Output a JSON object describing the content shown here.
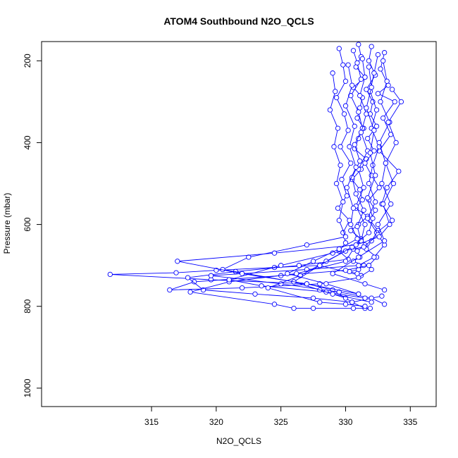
{
  "chart_data": {
    "type": "line",
    "title": "ATOM4 Southbound N2O_QCLS",
    "xlabel": "N2O_QCLS",
    "ylabel": "Pressure (mbar)",
    "xlim": [
      306.5,
      337
    ],
    "ylim": [
      1045,
      153
    ],
    "y_axis_inverted": true,
    "x_ticks": [
      315,
      320,
      325,
      330,
      335
    ],
    "y_ticks": [
      200,
      400,
      600,
      800,
      1000
    ],
    "grid": false,
    "legend": "none",
    "series_color": "#0000ff",
    "marker": "open-circle",
    "series": [
      {
        "name": "",
        "x": [
          331.0,
          331.2,
          330.8,
          331.5,
          330.6,
          331.3,
          331.1,
          330.9,
          331.4,
          331.0,
          330.7,
          331.6,
          331.2,
          330.5,
          331.1,
          331.3,
          330.8,
          331.7,
          331.0,
          330.4,
          331.2,
          331.5,
          330.9,
          331.1,
          330.6,
          331.4,
          331.0,
          330.3,
          330.9,
          331.2,
          328.0,
          324.5,
          320.0,
          316.9,
          311.8,
          319.6,
          327.0,
          329.0,
          330.5,
          331.5
        ],
        "y": [
          160,
          190,
          215,
          240,
          265,
          290,
          315,
          340,
          365,
          390,
          415,
          440,
          465,
          490,
          515,
          540,
          560,
          580,
          600,
          615,
          635,
          650,
          665,
          680,
          690,
          700,
          710,
          715,
          720,
          725,
          700,
          705,
          712,
          718,
          722,
          735,
          745,
          760,
          790,
          805
        ]
      },
      {
        "name": "",
        "x": [
          332.0,
          331.8,
          332.3,
          331.6,
          332.1,
          331.9,
          332.4,
          331.7,
          332.2,
          331.5,
          332.0,
          332.6,
          331.8,
          332.3,
          331.9,
          332.5,
          332.0,
          331.6,
          332.4,
          331.8,
          330.0,
          325.0,
          318.3,
          316.4,
          322.0,
          328.0,
          331.0,
          332.0
        ],
        "y": [
          165,
          200,
          235,
          270,
          300,
          330,
          360,
          390,
          420,
          450,
          480,
          510,
          540,
          565,
          590,
          615,
          640,
          660,
          680,
          700,
          712,
          725,
          740,
          760,
          755,
          745,
          730,
          710
        ]
      },
      {
        "name": "",
        "x": [
          329.5,
          329.8,
          330.0,
          329.3,
          329.9,
          330.2,
          329.6,
          330.4,
          329.7,
          330.1,
          329.4,
          330.3,
          329.8,
          330.0,
          329.5,
          330.2,
          326.4,
          321.5,
          317.8,
          319.0,
          323.0,
          327.5,
          330.5,
          332.8
        ],
        "y": [
          170,
          210,
          250,
          290,
          330,
          370,
          410,
          450,
          490,
          530,
          560,
          590,
          620,
          645,
          665,
          685,
          700,
          715,
          730,
          760,
          770,
          780,
          790,
          775
        ]
      },
      {
        "name": "",
        "x": [
          333.0,
          332.7,
          333.3,
          332.5,
          333.8,
          332.9,
          333.5,
          332.6,
          334.1,
          333.2,
          332.8,
          333.6,
          332.4,
          333.0,
          332.2,
          331.0,
          327.0,
          319.6,
          325.0,
          329.5,
          332.0,
          333.0
        ],
        "y": [
          180,
          220,
          260,
          280,
          300,
          340,
          380,
          420,
          470,
          510,
          550,
          590,
          620,
          650,
          680,
          700,
          710,
          725,
          745,
          765,
          780,
          795
        ]
      },
      {
        "name": "",
        "x": [
          330.6,
          330.9,
          331.2,
          330.4,
          331.0,
          331.3,
          330.7,
          331.1,
          330.5,
          330.8,
          331.4,
          330.9,
          331.2,
          330.6,
          330.0,
          326.2,
          321.0,
          318.0,
          324.5,
          326.0,
          327.5,
          330.6,
          331.9
        ],
        "y": [
          175,
          205,
          245,
          285,
          325,
          365,
          405,
          445,
          485,
          525,
          565,
          605,
          640,
          660,
          690,
          720,
          740,
          765,
          795,
          805,
          805,
          805,
          805
        ]
      },
      {
        "name": "",
        "x": [
          332.5,
          332.2,
          331.9,
          332.4,
          332.0,
          332.6,
          332.1,
          331.8,
          332.3,
          331.7,
          332.5,
          331.4,
          329.0,
          325.0,
          321.0,
          323.5,
          328.5,
          331.5
        ],
        "y": [
          185,
          230,
          275,
          320,
          365,
          410,
          455,
          500,
          545,
          585,
          625,
          655,
          670,
          700,
          735,
          750,
          765,
          780
        ]
      },
      {
        "name": "",
        "x": [
          331.3,
          331.5,
          331.1,
          331.6,
          331.2,
          331.7,
          331.0,
          331.4,
          330.8,
          331.5,
          331.2,
          330.0,
          328.5,
          326.5,
          324.0,
          328.0,
          330.0,
          331.5
        ],
        "y": [
          195,
          240,
          285,
          330,
          375,
          420,
          465,
          510,
          555,
          600,
          640,
          665,
          690,
          725,
          755,
          790,
          795,
          800
        ]
      },
      {
        "name": "",
        "x": [
          329.0,
          329.2,
          328.8,
          329.4,
          329.1,
          329.6,
          329.3,
          329.8,
          329.5,
          330.0,
          327.0,
          322.5,
          320.5,
          326.0,
          328.0,
          330.0
        ],
        "y": [
          230,
          275,
          320,
          365,
          410,
          455,
          500,
          545,
          590,
          630,
          650,
          680,
          710,
          740,
          760,
          780
        ]
      },
      {
        "name": "",
        "x": [
          332.9,
          333.2,
          332.7,
          333.4,
          332.6,
          333.1,
          332.8,
          333.5,
          332.5,
          333.0,
          331.0,
          329.0,
          331.5,
          333.0
        ],
        "y": [
          200,
          250,
          300,
          350,
          400,
          450,
          500,
          550,
          600,
          640,
          680,
          720,
          745,
          760
        ]
      },
      {
        "name": "",
        "x": [
          330.2,
          330.5,
          330.0,
          330.7,
          330.3,
          330.8,
          330.1,
          330.6,
          330.4,
          330.9,
          329.5,
          327.5,
          325.5,
          328.5,
          331.0
        ],
        "y": [
          210,
          260,
          310,
          360,
          410,
          460,
          510,
          560,
          600,
          635,
          660,
          690,
          720,
          745,
          770
        ]
      },
      {
        "name": "",
        "x": [
          331.8,
          332.0,
          331.6,
          332.2,
          331.9,
          332.3,
          331.7,
          332.1,
          331.8,
          330.5,
          328.0,
          326.0,
          329.0,
          332.0
        ],
        "y": [
          215,
          265,
          315,
          370,
          425,
          480,
          535,
          585,
          620,
          655,
          700,
          740,
          770,
          790
        ]
      },
      {
        "name": "",
        "x": [
          333.6,
          334.3,
          333.3,
          333.9,
          333.1,
          333.7,
          332.9,
          333.4,
          332.6,
          330.8,
          324.5,
          317.0,
          322.0,
          327.0,
          331.0
        ],
        "y": [
          270,
          300,
          350,
          400,
          450,
          500,
          550,
          600,
          630,
          650,
          670,
          690,
          720,
          745,
          770
        ]
      }
    ]
  }
}
